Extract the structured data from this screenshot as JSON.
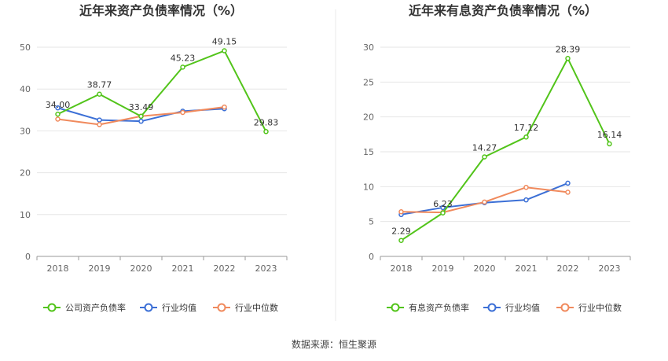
{
  "source": "数据来源：恒生聚源",
  "chart_data": [
    {
      "type": "line",
      "title": "近年来资产负债率情况（%）",
      "categories": [
        "2018",
        "2019",
        "2020",
        "2021",
        "2022",
        "2023"
      ],
      "ylim": [
        0,
        50
      ],
      "yticks": [
        "0",
        "10",
        "20",
        "30",
        "40",
        "50"
      ],
      "grid": true,
      "legend_position": "bottom",
      "series": [
        {
          "name": "公司资产负债率",
          "color": "#52c41a",
          "values": [
            34.0,
            38.77,
            33.49,
            45.23,
            49.15,
            29.83
          ],
          "labels": [
            "34.00",
            "38.77",
            "33.49",
            "45.23",
            "49.15",
            "29.83"
          ]
        },
        {
          "name": "行业均值",
          "color": "#3b6fd6",
          "values": [
            35.5,
            32.6,
            32.3,
            34.7,
            35.3,
            null
          ]
        },
        {
          "name": "行业中位数",
          "color": "#f08a5d",
          "values": [
            32.8,
            31.5,
            33.5,
            34.4,
            35.7,
            null
          ]
        }
      ]
    },
    {
      "type": "line",
      "title": "近年来有息资产负债率情况（%）",
      "categories": [
        "2018",
        "2019",
        "2020",
        "2021",
        "2022",
        "2023"
      ],
      "ylim": [
        0,
        30
      ],
      "yticks": [
        "0",
        "5",
        "10",
        "15",
        "20",
        "25",
        "30"
      ],
      "grid": true,
      "legend_position": "bottom",
      "series": [
        {
          "name": "有息资产负债率",
          "color": "#52c41a",
          "values": [
            2.29,
            6.23,
            14.27,
            17.12,
            28.39,
            16.14
          ],
          "labels": [
            "2.29",
            "6.23",
            "14.27",
            "17.12",
            "28.39",
            "16.14"
          ]
        },
        {
          "name": "行业均值",
          "color": "#3b6fd6",
          "values": [
            6.0,
            7.0,
            7.7,
            8.1,
            10.5,
            null
          ]
        },
        {
          "name": "行业中位数",
          "color": "#f08a5d",
          "values": [
            6.4,
            6.3,
            7.8,
            9.9,
            9.2,
            null
          ]
        }
      ]
    }
  ]
}
